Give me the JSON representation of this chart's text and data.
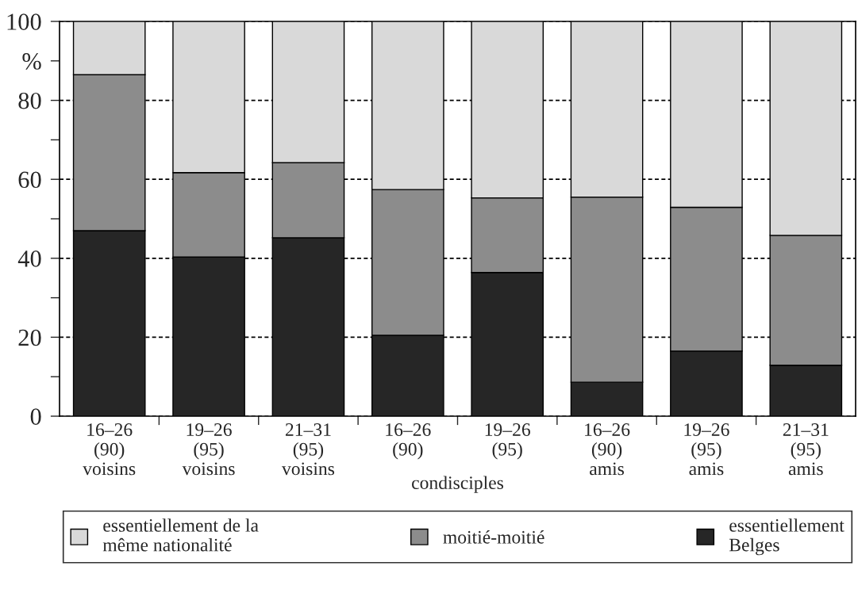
{
  "chart_data": {
    "type": "bar",
    "stacked": true,
    "categories": [
      "16–26\n(90)\nvoisins",
      "19–26\n(95)\nvoisins",
      "21–31\n(95)\nvoisins",
      "16–26\n(90)",
      "19–26\n(95)",
      "16–26\n(90)\namis",
      "19–26\n(95)\namis",
      "21–31\n(95)\namis"
    ],
    "series": [
      {
        "name": "essentiellement\nBelges",
        "color": "#262626",
        "values": [
          47.0,
          40.3,
          45.2,
          20.5,
          36.4,
          8.6,
          16.5,
          12.9
        ]
      },
      {
        "name": "moitié-moitié",
        "color": "#8c8c8c",
        "values": [
          39.5,
          21.4,
          19.0,
          36.9,
          18.9,
          46.9,
          36.4,
          32.9
        ]
      },
      {
        "name": "essentiellement de la\nmême nationalité",
        "color": "#d9d9d9",
        "values": [
          13.5,
          38.3,
          35.8,
          42.6,
          44.7,
          44.5,
          47.1,
          54.2
        ]
      }
    ],
    "ylim": [
      0,
      100
    ],
    "yticks": [
      0,
      {
        "value": 10,
        "label": null
      },
      20,
      {
        "value": 30,
        "label": null
      },
      40,
      {
        "value": 50,
        "label": null
      },
      60,
      {
        "value": 70,
        "label": null
      },
      80,
      {
        "value": 90,
        "label": "%"
      },
      100
    ],
    "annotations": [
      "condisciples"
    ],
    "grid": "y",
    "line_style": "dashed",
    "legend": "bottom"
  }
}
